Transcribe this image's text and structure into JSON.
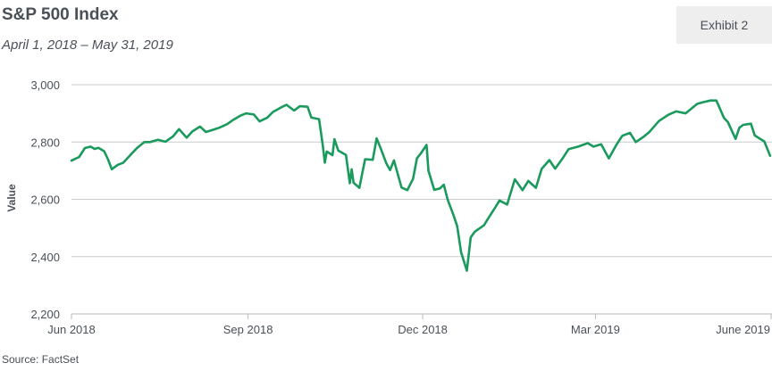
{
  "header": {
    "title": "S&P 500 Index",
    "subtitle": "April 1, 2018 – May 31, 2019",
    "exhibit": "Exhibit 2"
  },
  "footer": {
    "source": "Source: FactSet"
  },
  "colors": {
    "line": "#1a9a5c",
    "grid": "#c9cbcd",
    "axis": "#b8babc",
    "exhibit_bg": "#eeeeef"
  },
  "chart_data": {
    "type": "line",
    "title": "S&P 500 Index",
    "subtitle": "April 1, 2018 – May 31, 2019",
    "xlabel": "",
    "ylabel": "Value",
    "ylim": [
      2200,
      3000
    ],
    "xlim": [
      "2018-06-01",
      "2019-06-01"
    ],
    "grid": true,
    "y_ticks": [
      2200,
      2400,
      2600,
      2800,
      3000
    ],
    "y_tick_labels": [
      "2,200",
      "2,400",
      "2,600",
      "2,800",
      "3,000"
    ],
    "x_ticks": [
      "2018-06-01",
      "2018-09-01",
      "2018-12-01",
      "2019-03-01",
      "2019-06-01"
    ],
    "x_tick_labels": [
      "Jun 2018",
      "Sep 2018",
      "Dec 2018",
      "Mar 2019",
      "June 2019"
    ],
    "series": [
      {
        "name": "",
        "x": [
          "2018-06-01",
          "2018-06-05",
          "2018-06-08",
          "2018-06-11",
          "2018-06-13",
          "2018-06-15",
          "2018-06-18",
          "2018-06-20",
          "2018-06-22",
          "2018-06-25",
          "2018-06-28",
          "2018-07-02",
          "2018-07-05",
          "2018-07-09",
          "2018-07-12",
          "2018-07-16",
          "2018-07-20",
          "2018-07-24",
          "2018-07-27",
          "2018-07-31",
          "2018-08-03",
          "2018-08-07",
          "2018-08-10",
          "2018-08-14",
          "2018-08-17",
          "2018-08-21",
          "2018-08-24",
          "2018-08-28",
          "2018-08-31",
          "2018-09-04",
          "2018-09-07",
          "2018-09-11",
          "2018-09-14",
          "2018-09-18",
          "2018-09-21",
          "2018-09-25",
          "2018-09-28",
          "2018-10-02",
          "2018-10-04",
          "2018-10-08",
          "2018-10-10",
          "2018-10-11",
          "2018-10-12",
          "2018-10-15",
          "2018-10-16",
          "2018-10-18",
          "2018-10-22",
          "2018-10-24",
          "2018-10-25",
          "2018-10-26",
          "2018-10-29",
          "2018-11-01",
          "2018-11-05",
          "2018-11-07",
          "2018-11-09",
          "2018-11-12",
          "2018-11-14",
          "2018-11-16",
          "2018-11-20",
          "2018-11-23",
          "2018-11-26",
          "2018-11-28",
          "2018-11-30",
          "2018-12-03",
          "2018-12-04",
          "2018-12-07",
          "2018-12-10",
          "2018-12-12",
          "2018-12-14",
          "2018-12-17",
          "2018-12-19",
          "2018-12-21",
          "2018-12-24",
          "2018-12-26",
          "2018-12-28",
          "2019-01-02",
          "2019-01-04",
          "2019-01-08",
          "2019-01-10",
          "2019-01-14",
          "2019-01-18",
          "2019-01-22",
          "2019-01-25",
          "2019-01-29",
          "2019-02-01",
          "2019-02-05",
          "2019-02-08",
          "2019-02-12",
          "2019-02-15",
          "2019-02-20",
          "2019-02-25",
          "2019-02-28",
          "2019-03-04",
          "2019-03-08",
          "2019-03-12",
          "2019-03-15",
          "2019-03-19",
          "2019-03-22",
          "2019-03-26",
          "2019-03-29",
          "2019-04-03",
          "2019-04-08",
          "2019-04-12",
          "2019-04-17",
          "2019-04-23",
          "2019-04-26",
          "2019-04-30",
          "2019-05-03",
          "2019-05-07",
          "2019-05-09",
          "2019-05-13",
          "2019-05-15",
          "2019-05-17",
          "2019-05-21",
          "2019-05-23",
          "2019-05-28",
          "2019-05-31"
        ],
        "values": [
          2735,
          2748,
          2779,
          2784,
          2776,
          2780,
          2768,
          2740,
          2705,
          2720,
          2728,
          2757,
          2778,
          2800,
          2800,
          2808,
          2801,
          2820,
          2845,
          2815,
          2837,
          2854,
          2835,
          2843,
          2850,
          2862,
          2876,
          2892,
          2900,
          2896,
          2872,
          2885,
          2905,
          2920,
          2930,
          2910,
          2925,
          2923,
          2885,
          2880,
          2785,
          2728,
          2767,
          2754,
          2810,
          2770,
          2755,
          2656,
          2705,
          2658,
          2640,
          2740,
          2738,
          2813,
          2780,
          2726,
          2702,
          2736,
          2641,
          2632,
          2672,
          2743,
          2760,
          2790,
          2700,
          2633,
          2638,
          2651,
          2599,
          2546,
          2506,
          2416,
          2351,
          2467,
          2486,
          2510,
          2532,
          2574,
          2596,
          2582,
          2670,
          2632,
          2664,
          2640,
          2706,
          2737,
          2707,
          2744,
          2775,
          2784,
          2796,
          2784,
          2792,
          2743,
          2791,
          2822,
          2832,
          2800,
          2818,
          2834,
          2873,
          2895,
          2907,
          2900,
          2933,
          2939,
          2945,
          2945,
          2884,
          2870,
          2811,
          2850,
          2860,
          2864,
          2823,
          2802,
          2752
        ]
      }
    ]
  }
}
